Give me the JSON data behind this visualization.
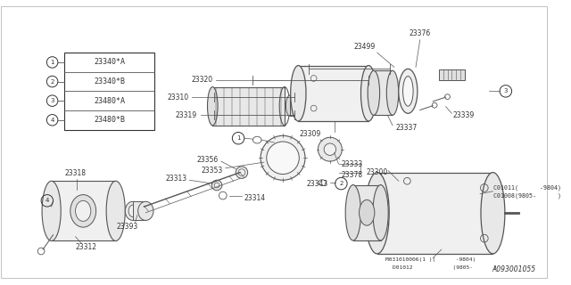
{
  "bg_color": "#ffffff",
  "dk": "#333333",
  "lc": "#555555",
  "watermark": "A093001055",
  "legend_items": [
    {
      "num": "1",
      "code": "23340*A"
    },
    {
      "num": "2",
      "code": "23340*B"
    },
    {
      "num": "3",
      "code": "23480*A"
    },
    {
      "num": "4",
      "code": "23480*B"
    }
  ],
  "figsize": [
    6.4,
    3.2
  ],
  "dpi": 100
}
